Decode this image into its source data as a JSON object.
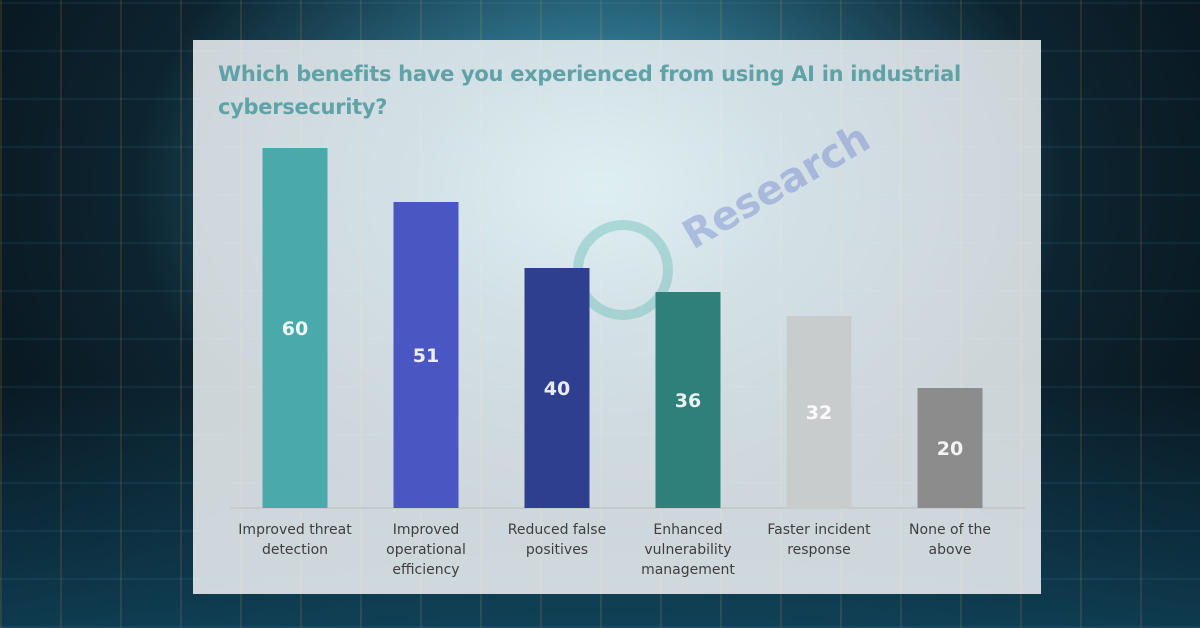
{
  "chart_data": {
    "type": "bar",
    "title": "Which benefits have you experienced from using AI in industrial cybersecurity?",
    "categories": [
      "Improved threat detection",
      "Improved operational efficiency",
      "Reduced false positives",
      "Enhanced vulnerability management",
      "Faster incident response",
      "None of the above"
    ],
    "label_lines": [
      [
        "Improved threat",
        "detection"
      ],
      [
        "Improved",
        "operational",
        "efficiency"
      ],
      [
        "Reduced false",
        "positives"
      ],
      [
        "Enhanced",
        "vulnerability",
        "management"
      ],
      [
        "Faster incident",
        "response"
      ],
      [
        "None of the",
        "above"
      ]
    ],
    "values": [
      60,
      51,
      40,
      36,
      32,
      20
    ],
    "colors": [
      "#4aa9aa",
      "#4a56c2",
      "#2f3f8f",
      "#2f7f7a",
      "#c9cccd",
      "#8c8c8c"
    ],
    "xlabel": "",
    "ylabel": "",
    "ylim": [
      0,
      60
    ],
    "grid": false,
    "legend": "none"
  },
  "watermark": "Research"
}
